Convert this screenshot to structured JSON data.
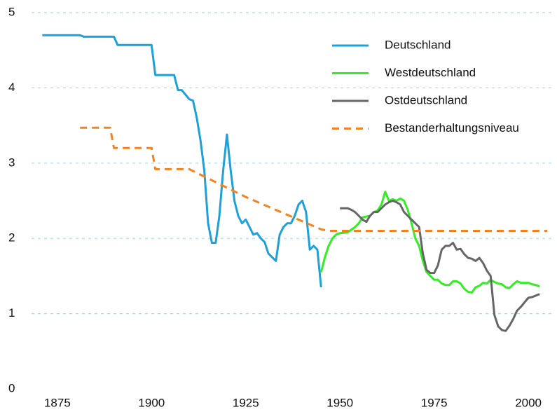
{
  "chart_data": {
    "type": "line",
    "xlim": [
      1870,
      2005
    ],
    "xticks": [
      1875,
      1900,
      1925,
      1950,
      1975,
      2000
    ],
    "ylim": [
      0,
      5
    ],
    "yticks": [
      0,
      1,
      2,
      3,
      4,
      5
    ],
    "grid": true,
    "legend": "upper right",
    "series": [
      {
        "name": "Deutschland",
        "color": "#1ea1d9",
        "x": [
          1871,
          1881,
          1882,
          1890,
          1891,
          1900,
          1901,
          1906,
          1907,
          1908,
          1910,
          1911,
          1912,
          1913,
          1914,
          1915,
          1916,
          1917,
          1918,
          1919,
          1920,
          1921,
          1922,
          1923,
          1924,
          1925,
          1926,
          1927,
          1928,
          1929,
          1930,
          1931,
          1932,
          1933,
          1934,
          1935,
          1936,
          1937,
          1938,
          1939,
          1940,
          1941,
          1942,
          1943,
          1944,
          1945
        ],
        "values": [
          4.7,
          4.7,
          4.68,
          4.68,
          4.57,
          4.57,
          4.17,
          4.17,
          3.97,
          3.97,
          3.85,
          3.83,
          3.6,
          3.3,
          2.9,
          2.2,
          1.94,
          1.94,
          2.3,
          2.9,
          3.38,
          2.9,
          2.5,
          2.3,
          2.2,
          2.25,
          2.15,
          2.05,
          2.07,
          2.0,
          1.95,
          1.8,
          1.75,
          1.7,
          2.05,
          2.15,
          2.2,
          2.2,
          2.3,
          2.45,
          2.5,
          2.35,
          1.85,
          1.9,
          1.85,
          1.35
        ]
      },
      {
        "name": "Westdeutschland",
        "color": "#33ee22",
        "x": [
          1945,
          1946,
          1947,
          1948,
          1949,
          1950,
          1952,
          1954,
          1955,
          1956,
          1958,
          1959,
          1960,
          1961,
          1962,
          1963,
          1964,
          1965,
          1966,
          1967,
          1968,
          1969,
          1970,
          1971,
          1972,
          1973,
          1974,
          1975,
          1976,
          1977,
          1978,
          1979,
          1980,
          1981,
          1982,
          1983,
          1984,
          1985,
          1986,
          1987,
          1988,
          1989,
          1990,
          1991,
          1992,
          1993,
          1994,
          1995,
          1996,
          1997,
          1998,
          1999,
          2000,
          2001,
          2002,
          2003
        ],
        "values": [
          1.55,
          1.75,
          1.9,
          2.0,
          2.05,
          2.07,
          2.08,
          2.15,
          2.2,
          2.28,
          2.3,
          2.35,
          2.37,
          2.45,
          2.62,
          2.5,
          2.52,
          2.5,
          2.53,
          2.5,
          2.38,
          2.2,
          2.0,
          1.9,
          1.7,
          1.55,
          1.5,
          1.45,
          1.45,
          1.4,
          1.38,
          1.38,
          1.43,
          1.43,
          1.4,
          1.33,
          1.29,
          1.28,
          1.35,
          1.37,
          1.41,
          1.4,
          1.45,
          1.42,
          1.4,
          1.39,
          1.35,
          1.34,
          1.39,
          1.43,
          1.41,
          1.41,
          1.41,
          1.39,
          1.38,
          1.36
        ]
      },
      {
        "name": "Ostdeutschland",
        "color": "#666666",
        "x": [
          1950,
          1952,
          1953,
          1954,
          1955,
          1956,
          1957,
          1958,
          1959,
          1960,
          1961,
          1962,
          1963,
          1964,
          1965,
          1966,
          1967,
          1968,
          1969,
          1970,
          1971,
          1972,
          1973,
          1974,
          1975,
          1976,
          1977,
          1978,
          1979,
          1980,
          1981,
          1982,
          1983,
          1984,
          1985,
          1986,
          1987,
          1988,
          1989,
          1990,
          1991,
          1992,
          1993,
          1994,
          1995,
          1996,
          1997,
          1998,
          1999,
          2000,
          2001,
          2002,
          2003
        ],
        "values": [
          2.4,
          2.4,
          2.38,
          2.35,
          2.3,
          2.25,
          2.22,
          2.3,
          2.35,
          2.35,
          2.4,
          2.45,
          2.48,
          2.5,
          2.48,
          2.45,
          2.35,
          2.3,
          2.25,
          2.2,
          2.15,
          1.8,
          1.58,
          1.54,
          1.54,
          1.64,
          1.85,
          1.9,
          1.9,
          1.94,
          1.85,
          1.86,
          1.79,
          1.74,
          1.73,
          1.7,
          1.74,
          1.67,
          1.57,
          1.5,
          0.98,
          0.83,
          0.78,
          0.77,
          0.84,
          0.93,
          1.04,
          1.09,
          1.15,
          1.21,
          1.22,
          1.24,
          1.26
        ]
      },
      {
        "name": "Bestanderhaltungsniveau",
        "color": "#f58220",
        "style": "dashed",
        "x": [
          1881,
          1889,
          1890,
          1900,
          1901,
          1910,
          1925,
          1945,
          1947,
          2005
        ],
        "values": [
          3.47,
          3.47,
          3.2,
          3.2,
          2.92,
          2.92,
          2.55,
          2.12,
          2.1,
          2.1
        ]
      }
    ]
  }
}
